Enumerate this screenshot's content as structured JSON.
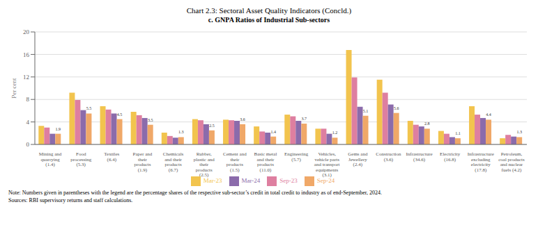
{
  "chart_data": {
    "type": "bar",
    "title": "Chart 2.3: Sectoral Asset Quality Indicators (Concld.)",
    "subtitle": "c. GNPA Ratios of Industrial Sub-sectors",
    "ylabel": "Per cent",
    "ylim": [
      0,
      20
    ],
    "yticks": [
      0,
      4,
      8,
      12,
      16,
      20
    ],
    "grid": true,
    "categories": [
      "Mining and\nquarrying\n(1.4)",
      "Food\nprocessing\n(5.3)",
      "Textiles\n(6.4)",
      "Paper and\ntheir\nproducts\n(1.9)",
      "Chemicals\nand their\nproducts\n(6.7)",
      "Rubber,\nplastic and\ntheir\nproducts\n(2.5)",
      "Cement and\ntheir\nproducts\n(1.5)",
      "Basic metal\nand their\nproducts\n(11.0)",
      "Engineering\n(5.7)",
      "Vehicles,\nvehicle parts\nand transport\nequipments\n(3.1)",
      "Gems and\nJewellery\n(2.4)",
      "Construction\n(3.6)",
      "Infrastructure\n(34.6)",
      "Electricity\n(16.8)",
      "Infrastructure\nexcluding\nelectricity\n(17.8)",
      "Petroleum,\ncoal products\nand nuclear\nfuels (4.2)"
    ],
    "series": [
      {
        "name": "Mar-23",
        "color": "#f2c44e",
        "values": [
          3.3,
          9.2,
          6.8,
          5.8,
          2.1,
          4.5,
          4.4,
          3.2,
          5.3,
          2.8,
          16.8,
          11.5,
          4.2,
          2.4,
          6.8,
          1.1
        ]
      },
      {
        "name": "Sep-23",
        "color": "#de7fa0",
        "values": [
          3.0,
          7.9,
          6.2,
          5.2,
          1.5,
          4.3,
          4.3,
          2.3,
          5.0,
          2.8,
          11.9,
          9.2,
          3.5,
          1.9,
          5.3,
          1.7
        ]
      },
      {
        "name": "Mar-24",
        "color": "#8b6bab",
        "values": [
          1.9,
          6.1,
          5.5,
          4.7,
          1.2,
          3.6,
          4.2,
          2.1,
          4.2,
          1.9,
          6.7,
          7.1,
          3.2,
          1.3,
          4.7,
          1.4
        ]
      },
      {
        "name": "Sep-24",
        "color": "#f0a868",
        "data_labels": true,
        "values": [
          1.9,
          5.5,
          4.5,
          3.5,
          1.3,
          2.5,
          3.6,
          1.4,
          3.7,
          1.2,
          5.1,
          5.6,
          2.8,
          1.1,
          4.4,
          1.3
        ]
      }
    ],
    "annotations": [
      "Note: Numbers given in parentheses with the legend are the percentage shares of the respective sub-sector’s credit in total credit to industry as of end-September, 2024.",
      "Sources: RBI supervisory returns and staff calculations."
    ]
  }
}
